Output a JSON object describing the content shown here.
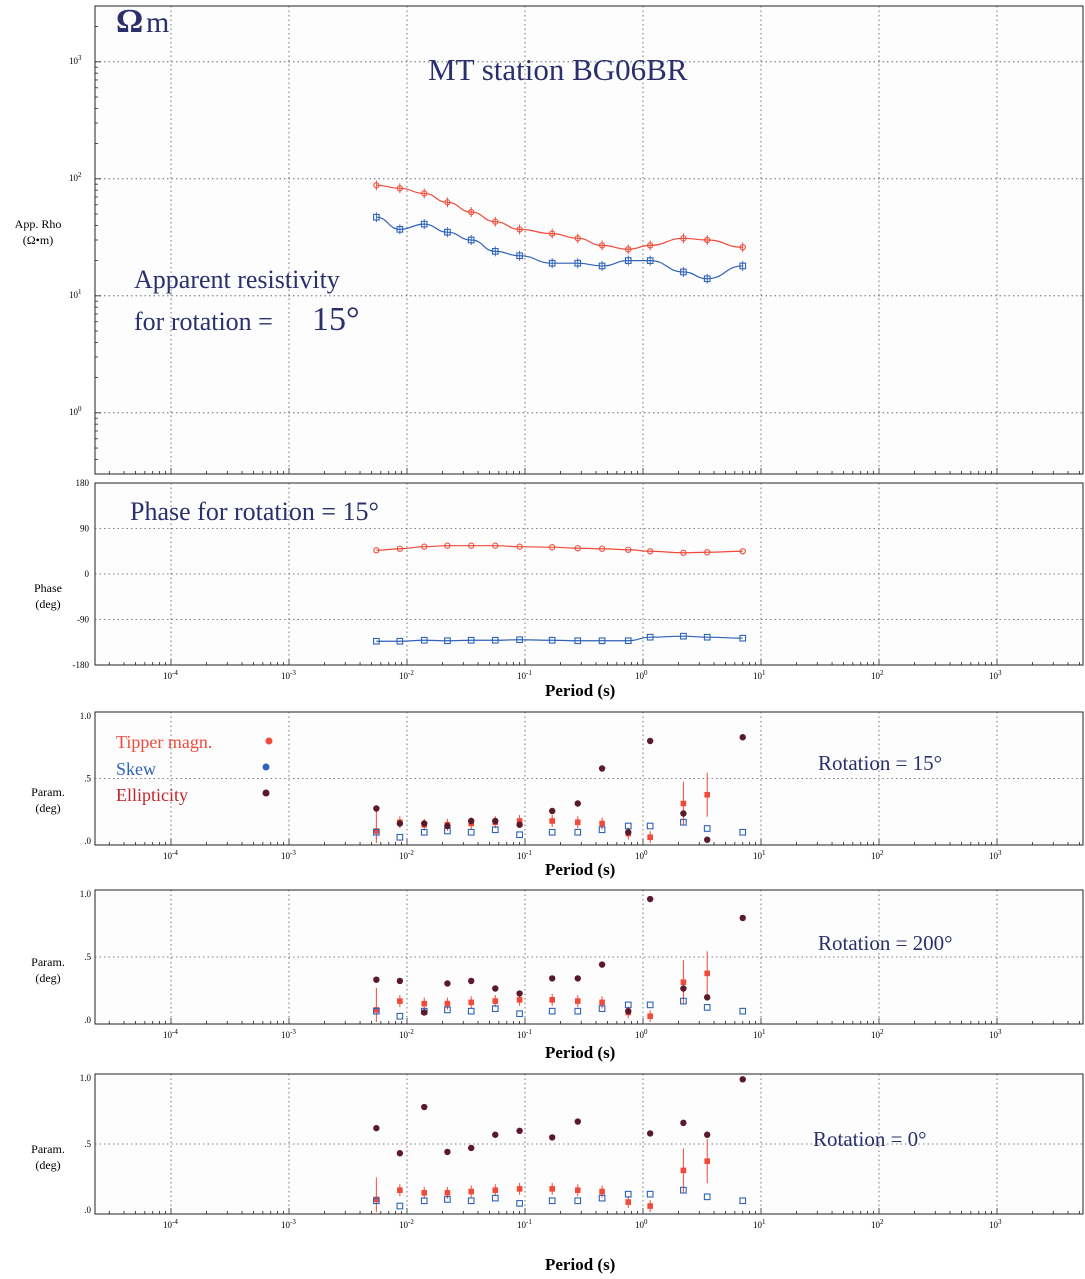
{
  "page": {
    "omega_label": "Ω",
    "m_label": "m",
    "station_title": "MT station BG06BR"
  },
  "colors": {
    "xy": "#f04a3a",
    "yx": "#2f62b8",
    "tipper": "#f04a3a",
    "skew": "#2f62b8",
    "ellipticity": "#5a1a2a",
    "title_text": "#2b2f6b",
    "legend_tipper": "#f04a3a",
    "legend_skew": "#2f62b8",
    "legend_ellipticity": "#c0262c"
  },
  "chart_data": [
    {
      "id": "rho",
      "type": "scatter",
      "ylabel": "App. Rho",
      "ylabel_unit": "(Ω•m)",
      "annotation_line1": "Apparent resistivity",
      "annotation_line2": "for rotation =",
      "annotation_value": "15°",
      "log_y": true,
      "xlim": [
        3.16e-05,
        5000
      ],
      "ylim": [
        0.3,
        3000
      ],
      "yticks": [
        {
          "value": 1,
          "base": "10",
          "exp": "0"
        },
        {
          "value": 10,
          "base": "10",
          "exp": "1"
        },
        {
          "value": 100,
          "base": "10",
          "exp": "2"
        },
        {
          "value": 1000,
          "base": "10",
          "exp": "3"
        }
      ],
      "x": [
        0.0055,
        0.0087,
        0.014,
        0.022,
        0.035,
        0.056,
        0.09,
        0.17,
        0.28,
        0.45,
        0.75,
        1.15,
        2.2,
        3.5,
        7.0
      ],
      "series": [
        {
          "name": "xy",
          "values": [
            88,
            83,
            75,
            63,
            52,
            43,
            37,
            34,
            31,
            27,
            25,
            27,
            31,
            30,
            26
          ]
        },
        {
          "name": "yx",
          "values": [
            47,
            37,
            41,
            35,
            30,
            24,
            22,
            19,
            19,
            18,
            20,
            20,
            16,
            14,
            18
          ]
        }
      ]
    },
    {
      "id": "phase",
      "type": "scatter",
      "ylabel": "Phase",
      "ylabel_unit": "(deg)",
      "annotation": "Phase for rotation = 15°",
      "ylim": [
        -180,
        180
      ],
      "yticks": [
        {
          "value": -180,
          "label": "-180"
        },
        {
          "value": -90,
          "label": "-90"
        },
        {
          "value": 0,
          "label": "0"
        },
        {
          "value": 90,
          "label": "90"
        },
        {
          "value": 180,
          "label": "180"
        }
      ],
      "xlabel": "Period (s)",
      "x": [
        0.0055,
        0.0087,
        0.014,
        0.022,
        0.035,
        0.056,
        0.09,
        0.17,
        0.28,
        0.45,
        0.75,
        1.15,
        2.2,
        3.5,
        7.0
      ],
      "series": [
        {
          "name": "xy",
          "values": [
            47,
            50,
            54,
            56,
            56,
            56,
            54,
            53,
            51,
            50,
            48,
            45,
            42,
            43,
            45
          ]
        },
        {
          "name": "yx",
          "values": [
            -133,
            -133,
            -131,
            -132,
            -131,
            -131,
            -130,
            -131,
            -132,
            -132,
            -132,
            -125,
            -123,
            -125,
            -127
          ]
        }
      ]
    },
    {
      "id": "params_15",
      "type": "scatter",
      "ylabel": "Param.",
      "ylabel_unit": "(deg)",
      "annotation": "Rotation = 15°",
      "legend": [
        "Tipper magn.",
        "Skew",
        "Ellipticity"
      ],
      "ylim": [
        0,
        1
      ],
      "yticks": [
        {
          "value": 0,
          "label": ".0"
        },
        {
          "value": 0.5,
          "label": ".5"
        },
        {
          "value": 1,
          "label": "1.0"
        }
      ],
      "xlabel": "Period (s)",
      "x": [
        0.0055,
        0.0087,
        0.014,
        0.022,
        0.035,
        0.056,
        0.09,
        0.17,
        0.28,
        0.45,
        0.75,
        1.15,
        2.2,
        3.5,
        7.0
      ],
      "series": [
        {
          "name": "Tipper magn.",
          "values": [
            0.08,
            0.15,
            0.13,
            0.13,
            0.14,
            0.15,
            0.16,
            0.16,
            0.15,
            0.14,
            0.06,
            0.03,
            0.3,
            0.37,
            null
          ]
        },
        {
          "name": "Skew",
          "values": [
            0.07,
            0.03,
            0.07,
            0.08,
            0.07,
            0.09,
            0.05,
            0.07,
            0.07,
            0.09,
            0.12,
            0.12,
            0.15,
            0.1,
            0.07
          ]
        },
        {
          "name": "Ellipticity",
          "values": [
            0.26,
            0.14,
            0.14,
            0.12,
            0.16,
            0.16,
            0.13,
            0.24,
            0.3,
            0.58,
            0.07,
            0.8,
            0.22,
            0.01,
            0.83
          ]
        }
      ]
    },
    {
      "id": "params_200",
      "type": "scatter",
      "ylabel": "Param.",
      "ylabel_unit": "(deg)",
      "annotation": "Rotation = 200°",
      "ylim": [
        0,
        1
      ],
      "yticks": [
        {
          "value": 0,
          "label": ".0"
        },
        {
          "value": 0.5,
          "label": ".5"
        },
        {
          "value": 1,
          "label": "1.0"
        }
      ],
      "xlabel": "Period (s)",
      "x": [
        0.0055,
        0.0087,
        0.014,
        0.022,
        0.035,
        0.056,
        0.09,
        0.17,
        0.28,
        0.45,
        0.75,
        1.15,
        2.2,
        3.5,
        7.0
      ],
      "series": [
        {
          "name": "Tipper magn.",
          "values": [
            0.08,
            0.15,
            0.13,
            0.13,
            0.14,
            0.15,
            0.16,
            0.16,
            0.15,
            0.14,
            0.06,
            0.03,
            0.3,
            0.37,
            null
          ]
        },
        {
          "name": "Skew",
          "values": [
            0.07,
            0.03,
            0.07,
            0.08,
            0.07,
            0.09,
            0.05,
            0.07,
            0.07,
            0.09,
            0.12,
            0.12,
            0.15,
            0.1,
            0.07
          ]
        },
        {
          "name": "Ellipticity",
          "values": [
            0.32,
            0.31,
            0.06,
            0.29,
            0.31,
            0.25,
            0.21,
            0.33,
            0.33,
            0.44,
            0.07,
            0.96,
            0.25,
            0.18,
            0.81
          ]
        }
      ]
    },
    {
      "id": "params_0",
      "type": "scatter",
      "ylabel": "Param.",
      "ylabel_unit": "(deg)",
      "annotation": "Rotation = 0°",
      "ylim": [
        0,
        1
      ],
      "yticks": [
        {
          "value": 0,
          "label": ".0"
        },
        {
          "value": 0.5,
          "label": ".5"
        },
        {
          "value": 1,
          "label": "1.0"
        }
      ],
      "xlabel": "Period (s)",
      "x": [
        0.0055,
        0.0087,
        0.014,
        0.022,
        0.035,
        0.056,
        0.09,
        0.17,
        0.28,
        0.45,
        0.75,
        1.15,
        2.2,
        3.5,
        7.0
      ],
      "series": [
        {
          "name": "Tipper magn.",
          "values": [
            0.08,
            0.15,
            0.13,
            0.13,
            0.14,
            0.15,
            0.16,
            0.16,
            0.15,
            0.14,
            0.06,
            0.03,
            0.3,
            0.37,
            null
          ]
        },
        {
          "name": "Skew",
          "values": [
            0.07,
            0.03,
            0.07,
            0.08,
            0.07,
            0.09,
            0.05,
            0.07,
            0.07,
            0.09,
            0.12,
            0.12,
            0.15,
            0.1,
            0.07
          ]
        },
        {
          "name": "Ellipticity",
          "values": [
            0.62,
            0.43,
            0.78,
            0.44,
            0.47,
            0.57,
            0.6,
            0.55,
            0.67,
            null,
            null,
            0.58,
            0.66,
            0.57,
            0.99
          ]
        }
      ]
    }
  ],
  "x_axis": {
    "ticks": [
      {
        "value": 0.0001,
        "base": "10",
        "exp": "-4"
      },
      {
        "value": 0.001,
        "base": "10",
        "exp": "-3"
      },
      {
        "value": 0.01,
        "base": "10",
        "exp": "-2"
      },
      {
        "value": 0.1,
        "base": "10",
        "exp": "-1"
      },
      {
        "value": 1,
        "base": "10",
        "exp": "0"
      },
      {
        "value": 10,
        "base": "10",
        "exp": "1"
      },
      {
        "value": 100,
        "base": "10",
        "exp": "2"
      },
      {
        "value": 1000,
        "base": "10",
        "exp": "3"
      }
    ],
    "label": "Period (s)"
  }
}
